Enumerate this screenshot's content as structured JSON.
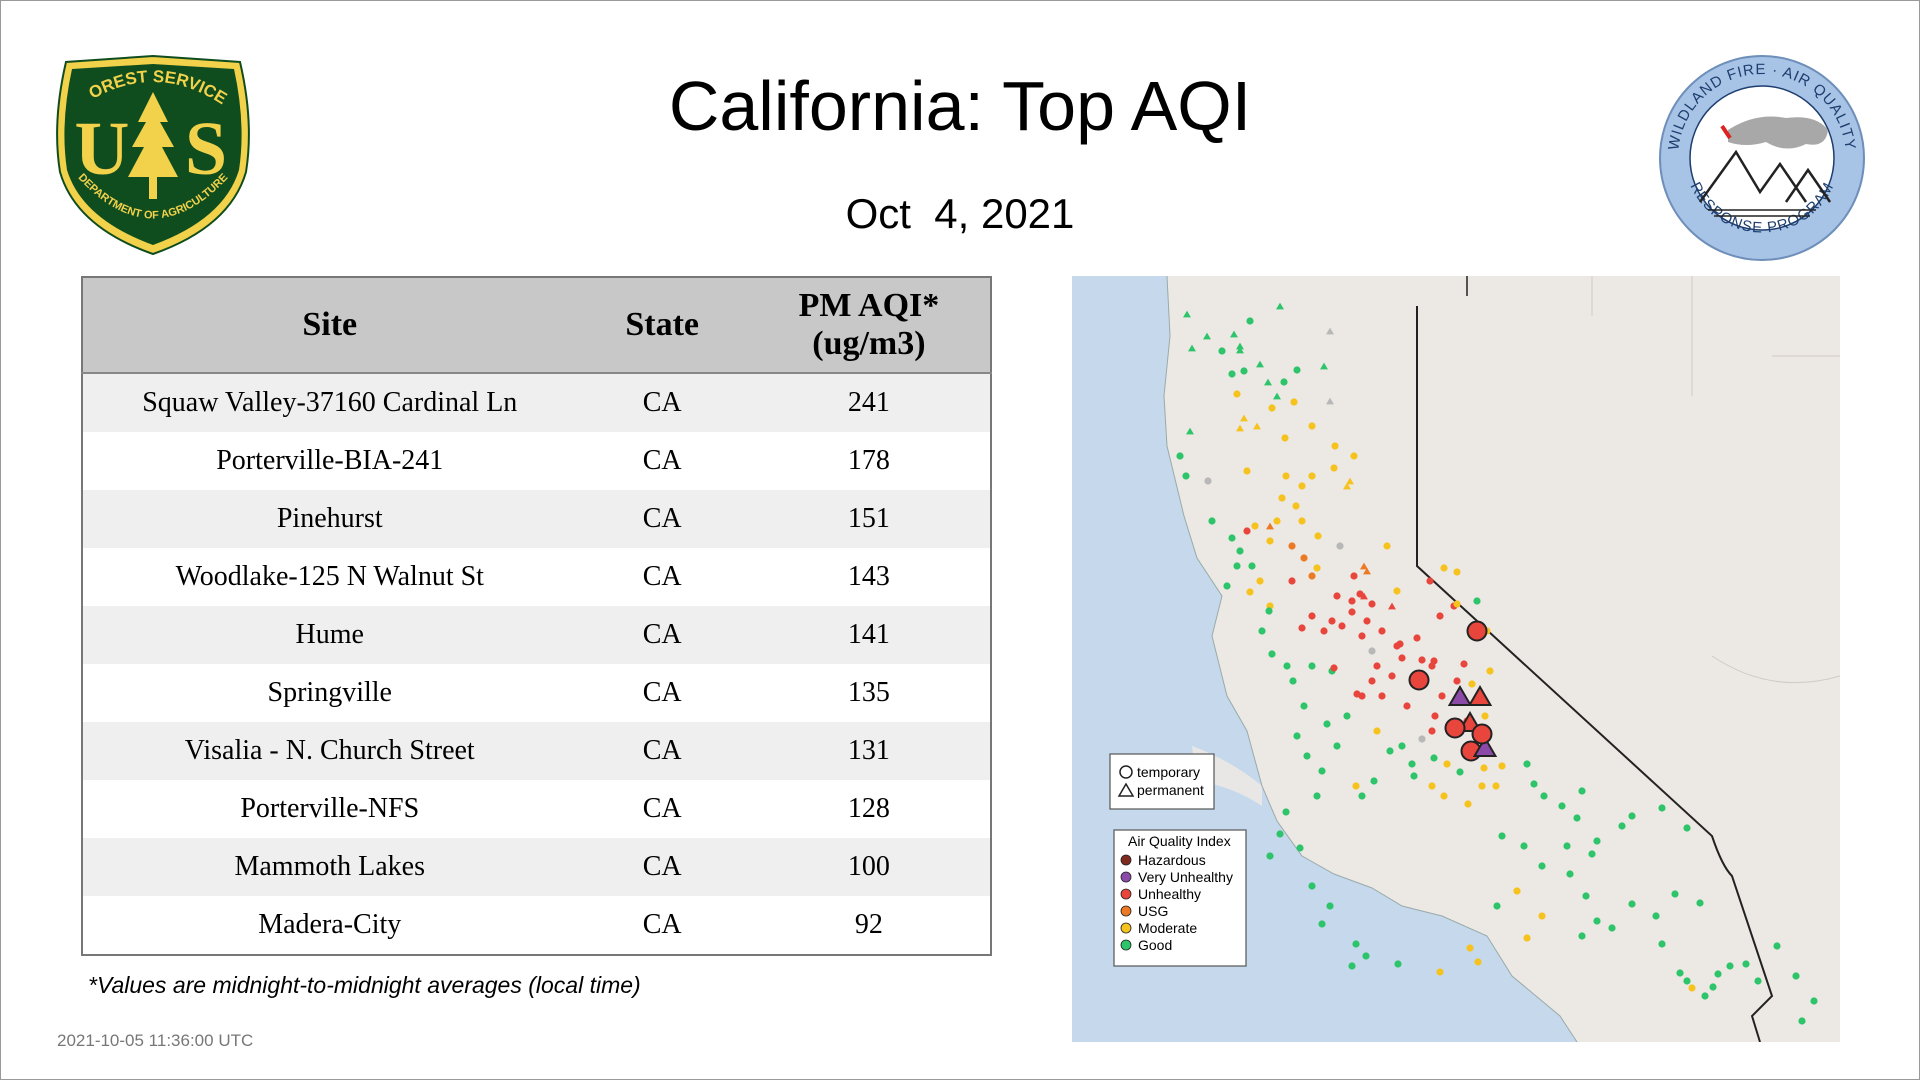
{
  "title": "California: Top AQI",
  "date": "Oct  4, 2021",
  "logos": {
    "forest_service": {
      "icon": "forest-service-shield-icon",
      "text_top": "FOREST SERVICE",
      "text_u": "U",
      "text_s": "S",
      "text_bottom": "DEPARTMENT OF AGRICULTURE",
      "colors": {
        "green": "#0f4d1e",
        "gold": "#f2d14b"
      }
    },
    "wildland_fire": {
      "icon": "wildland-fire-air-quality-seal-icon",
      "text_top": "WILDLAND FIRE · AIR QUALITY",
      "text_bottom": "RESPONSE PROGRAM",
      "colors": {
        "ring": "#a7c3e6",
        "text": "#1d3e6e"
      }
    }
  },
  "table": {
    "headers": {
      "site": "Site",
      "state": "State",
      "aqi_line1": "PM AQI*",
      "aqi_line2": "(ug/m3)"
    },
    "rows": [
      {
        "site": "Squaw Valley-37160 Cardinal Ln",
        "state": "CA",
        "aqi": "241"
      },
      {
        "site": "Porterville-BIA-241",
        "state": "CA",
        "aqi": "178"
      },
      {
        "site": "Pinehurst",
        "state": "CA",
        "aqi": "151"
      },
      {
        "site": "Woodlake-125 N Walnut St",
        "state": "CA",
        "aqi": "143"
      },
      {
        "site": "Hume",
        "state": "CA",
        "aqi": "141"
      },
      {
        "site": "Springville",
        "state": "CA",
        "aqi": "135"
      },
      {
        "site": "Visalia - N. Church Street",
        "state": "CA",
        "aqi": "131"
      },
      {
        "site": "Porterville-NFS",
        "state": "CA",
        "aqi": "128"
      },
      {
        "site": "Mammoth Lakes",
        "state": "CA",
        "aqi": "100"
      },
      {
        "site": "Madera-City",
        "state": "CA",
        "aqi": "92"
      }
    ]
  },
  "footnote": "*Values are midnight-to-midnight averages (local time)",
  "timestamp": "2021-10-05 11:36:00 UTC",
  "map": {
    "colors": {
      "land": "#ece8e4",
      "ocean": "#c6d9ec",
      "border": "#222222"
    },
    "legend_shape": {
      "temporary": "temporary",
      "permanent": "permanent"
    },
    "legend_aqi": {
      "title": "Air Quality Index",
      "items": [
        {
          "label": "Hazardous",
          "color": "#7e2a1e"
        },
        {
          "label": "Very Unhealthy",
          "color": "#8b4aa8"
        },
        {
          "label": "Unhealthy",
          "color": "#e8453c"
        },
        {
          "label": "USG",
          "color": "#ec7a24"
        },
        {
          "label": "Moderate",
          "color": "#f6c21d"
        },
        {
          "label": "Good",
          "color": "#2dc46a"
        }
      ]
    }
  }
}
